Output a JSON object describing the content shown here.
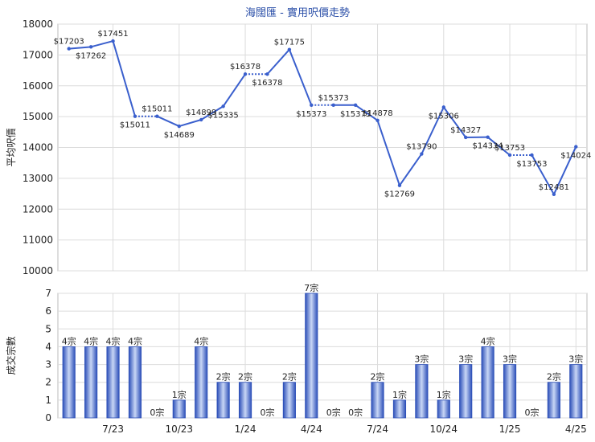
{
  "colors": {
    "accent": "#3a5fcd",
    "bar_dark": "#2c4fb8",
    "bar_light": "#c8d6f5",
    "grid": "#dcdcdc",
    "title": "#2b4fa8"
  },
  "chart_data": [
    {
      "type": "line",
      "title": "海闊匯 - 實用呎價走勢",
      "ylabel": "平均呎價",
      "ylim": [
        10000,
        18000
      ],
      "yticks": [
        "10000",
        "11000",
        "12000",
        "13000",
        "14000",
        "15000",
        "16000",
        "17000",
        "18000"
      ],
      "grid": true,
      "x_tick_labels": [
        "7/23",
        "10/23",
        "1/24",
        "4/24",
        "7/24",
        "10/24",
        "1/25",
        "4/25"
      ],
      "values": [
        17203,
        17262,
        17451,
        15011,
        15011,
        14689,
        14899,
        15335,
        16378,
        16378,
        17175,
        15373,
        15373,
        15373,
        14878,
        12769,
        13790,
        15306,
        14327,
        14334,
        13753,
        13753,
        12481,
        14024
      ],
      "point_labels": [
        "$17203",
        "$17262",
        "$17451",
        "$15011",
        "$15011",
        "$14689",
        "$14899",
        "$15335",
        "$16378",
        "$16378",
        "$17175",
        "$15373",
        "$15373",
        "$15373",
        "$14878",
        "$12769",
        "$13790",
        "$15306",
        "$14327",
        "$14334",
        "$13753",
        "$13753",
        "$12481",
        "$14024"
      ],
      "carried_forward": [
        false,
        false,
        false,
        false,
        true,
        false,
        false,
        false,
        false,
        true,
        false,
        false,
        true,
        false,
        false,
        false,
        false,
        false,
        false,
        false,
        false,
        true,
        false,
        false
      ]
    },
    {
      "type": "bar",
      "ylabel": "成交宗數",
      "ylim": [
        0,
        7
      ],
      "yticks": [
        "0",
        "1",
        "2",
        "3",
        "4",
        "5",
        "6",
        "7"
      ],
      "grid": true,
      "x_tick_labels": [
        "7/23",
        "10/23",
        "1/24",
        "4/24",
        "7/24",
        "10/24",
        "1/25",
        "4/25"
      ],
      "values": [
        4,
        4,
        4,
        4,
        0,
        1,
        4,
        2,
        2,
        0,
        2,
        7,
        0,
        0,
        2,
        1,
        3,
        1,
        3,
        4,
        3,
        0,
        2,
        3
      ],
      "bar_labels": [
        "4宗",
        "4宗",
        "4宗",
        "4宗",
        "0宗",
        "1宗",
        "4宗",
        "2宗",
        "2宗",
        "0宗",
        "2宗",
        "7宗",
        "0宗",
        "0宗",
        "2宗",
        "1宗",
        "3宗",
        "1宗",
        "3宗",
        "4宗",
        "3宗",
        "0宗",
        "2宗",
        "3宗"
      ]
    }
  ]
}
